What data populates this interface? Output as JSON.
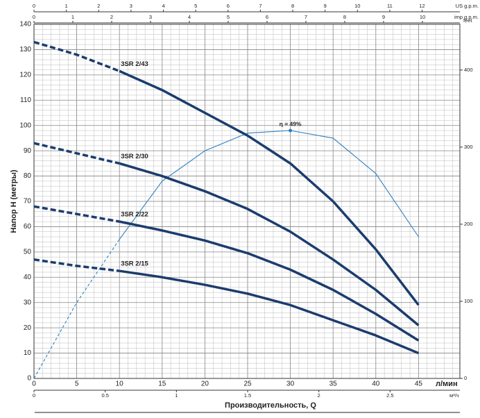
{
  "chart_data": {
    "type": "line",
    "y_label": "Напор  H  (метры)",
    "x_title": "Производительность, Q",
    "x_unit": "л/мин",
    "x": [
      0,
      5,
      10,
      15,
      20,
      25,
      30,
      35,
      40,
      45
    ],
    "xlim": [
      0,
      50
    ],
    "xticks": [
      0,
      5,
      10,
      15,
      20,
      25,
      30,
      35,
      40,
      45
    ],
    "ylim": [
      0,
      140
    ],
    "yticks": [
      0,
      10,
      20,
      30,
      40,
      50,
      60,
      70,
      80,
      90,
      100,
      110,
      120,
      130,
      140
    ],
    "y2_unit": "feet",
    "y2lim": [
      0,
      459.3
    ],
    "y2ticks": [
      0,
      100,
      200,
      300,
      400
    ],
    "grid": true,
    "dashed_below_x": 10,
    "series": [
      {
        "name": "3SR 2/43",
        "color": "#1b3c6e",
        "values": [
          133,
          128,
          121.5,
          114,
          105,
          96,
          85,
          70,
          51,
          29
        ]
      },
      {
        "name": "3SR 2/30",
        "color": "#1b3c6e",
        "values": [
          93,
          89,
          85,
          80,
          74,
          67,
          58,
          47,
          35,
          21
        ]
      },
      {
        "name": "3SR 2/22",
        "color": "#1b3c6e",
        "values": [
          68,
          65,
          62,
          58.5,
          54.5,
          49.5,
          43,
          35,
          25.5,
          15
        ]
      },
      {
        "name": "3SR 2/15",
        "color": "#1b3c6e",
        "values": [
          47,
          44.5,
          42.5,
          40,
          37,
          33.5,
          29,
          23,
          17,
          10
        ]
      }
    ],
    "efficiency": {
      "color": "#2a7fc1",
      "lim": [
        0,
        70
      ],
      "values": [
        0,
        15,
        27.5,
        39,
        45,
        48.5,
        49,
        47.5,
        40.5,
        28
      ],
      "peak_x": 30,
      "peak_value": 49,
      "peak_label": "η = 49%"
    },
    "top_axes": [
      {
        "unit": "US g.p.m.",
        "lim": [
          0,
          13.21
        ],
        "ticks": [
          0,
          1,
          2,
          3,
          4,
          5,
          6,
          7,
          8,
          9,
          10,
          11,
          12
        ]
      },
      {
        "unit": "imp g.p.m.",
        "lim": [
          0,
          11.0
        ],
        "ticks": [
          0,
          1,
          2,
          3,
          4,
          5,
          6,
          7,
          8,
          9,
          10
        ]
      }
    ],
    "bottom_axis": {
      "unit": "м³/ч",
      "lim": [
        0,
        3
      ],
      "ticks": [
        0,
        0.5,
        1,
        1.5,
        2,
        2.5
      ]
    }
  }
}
